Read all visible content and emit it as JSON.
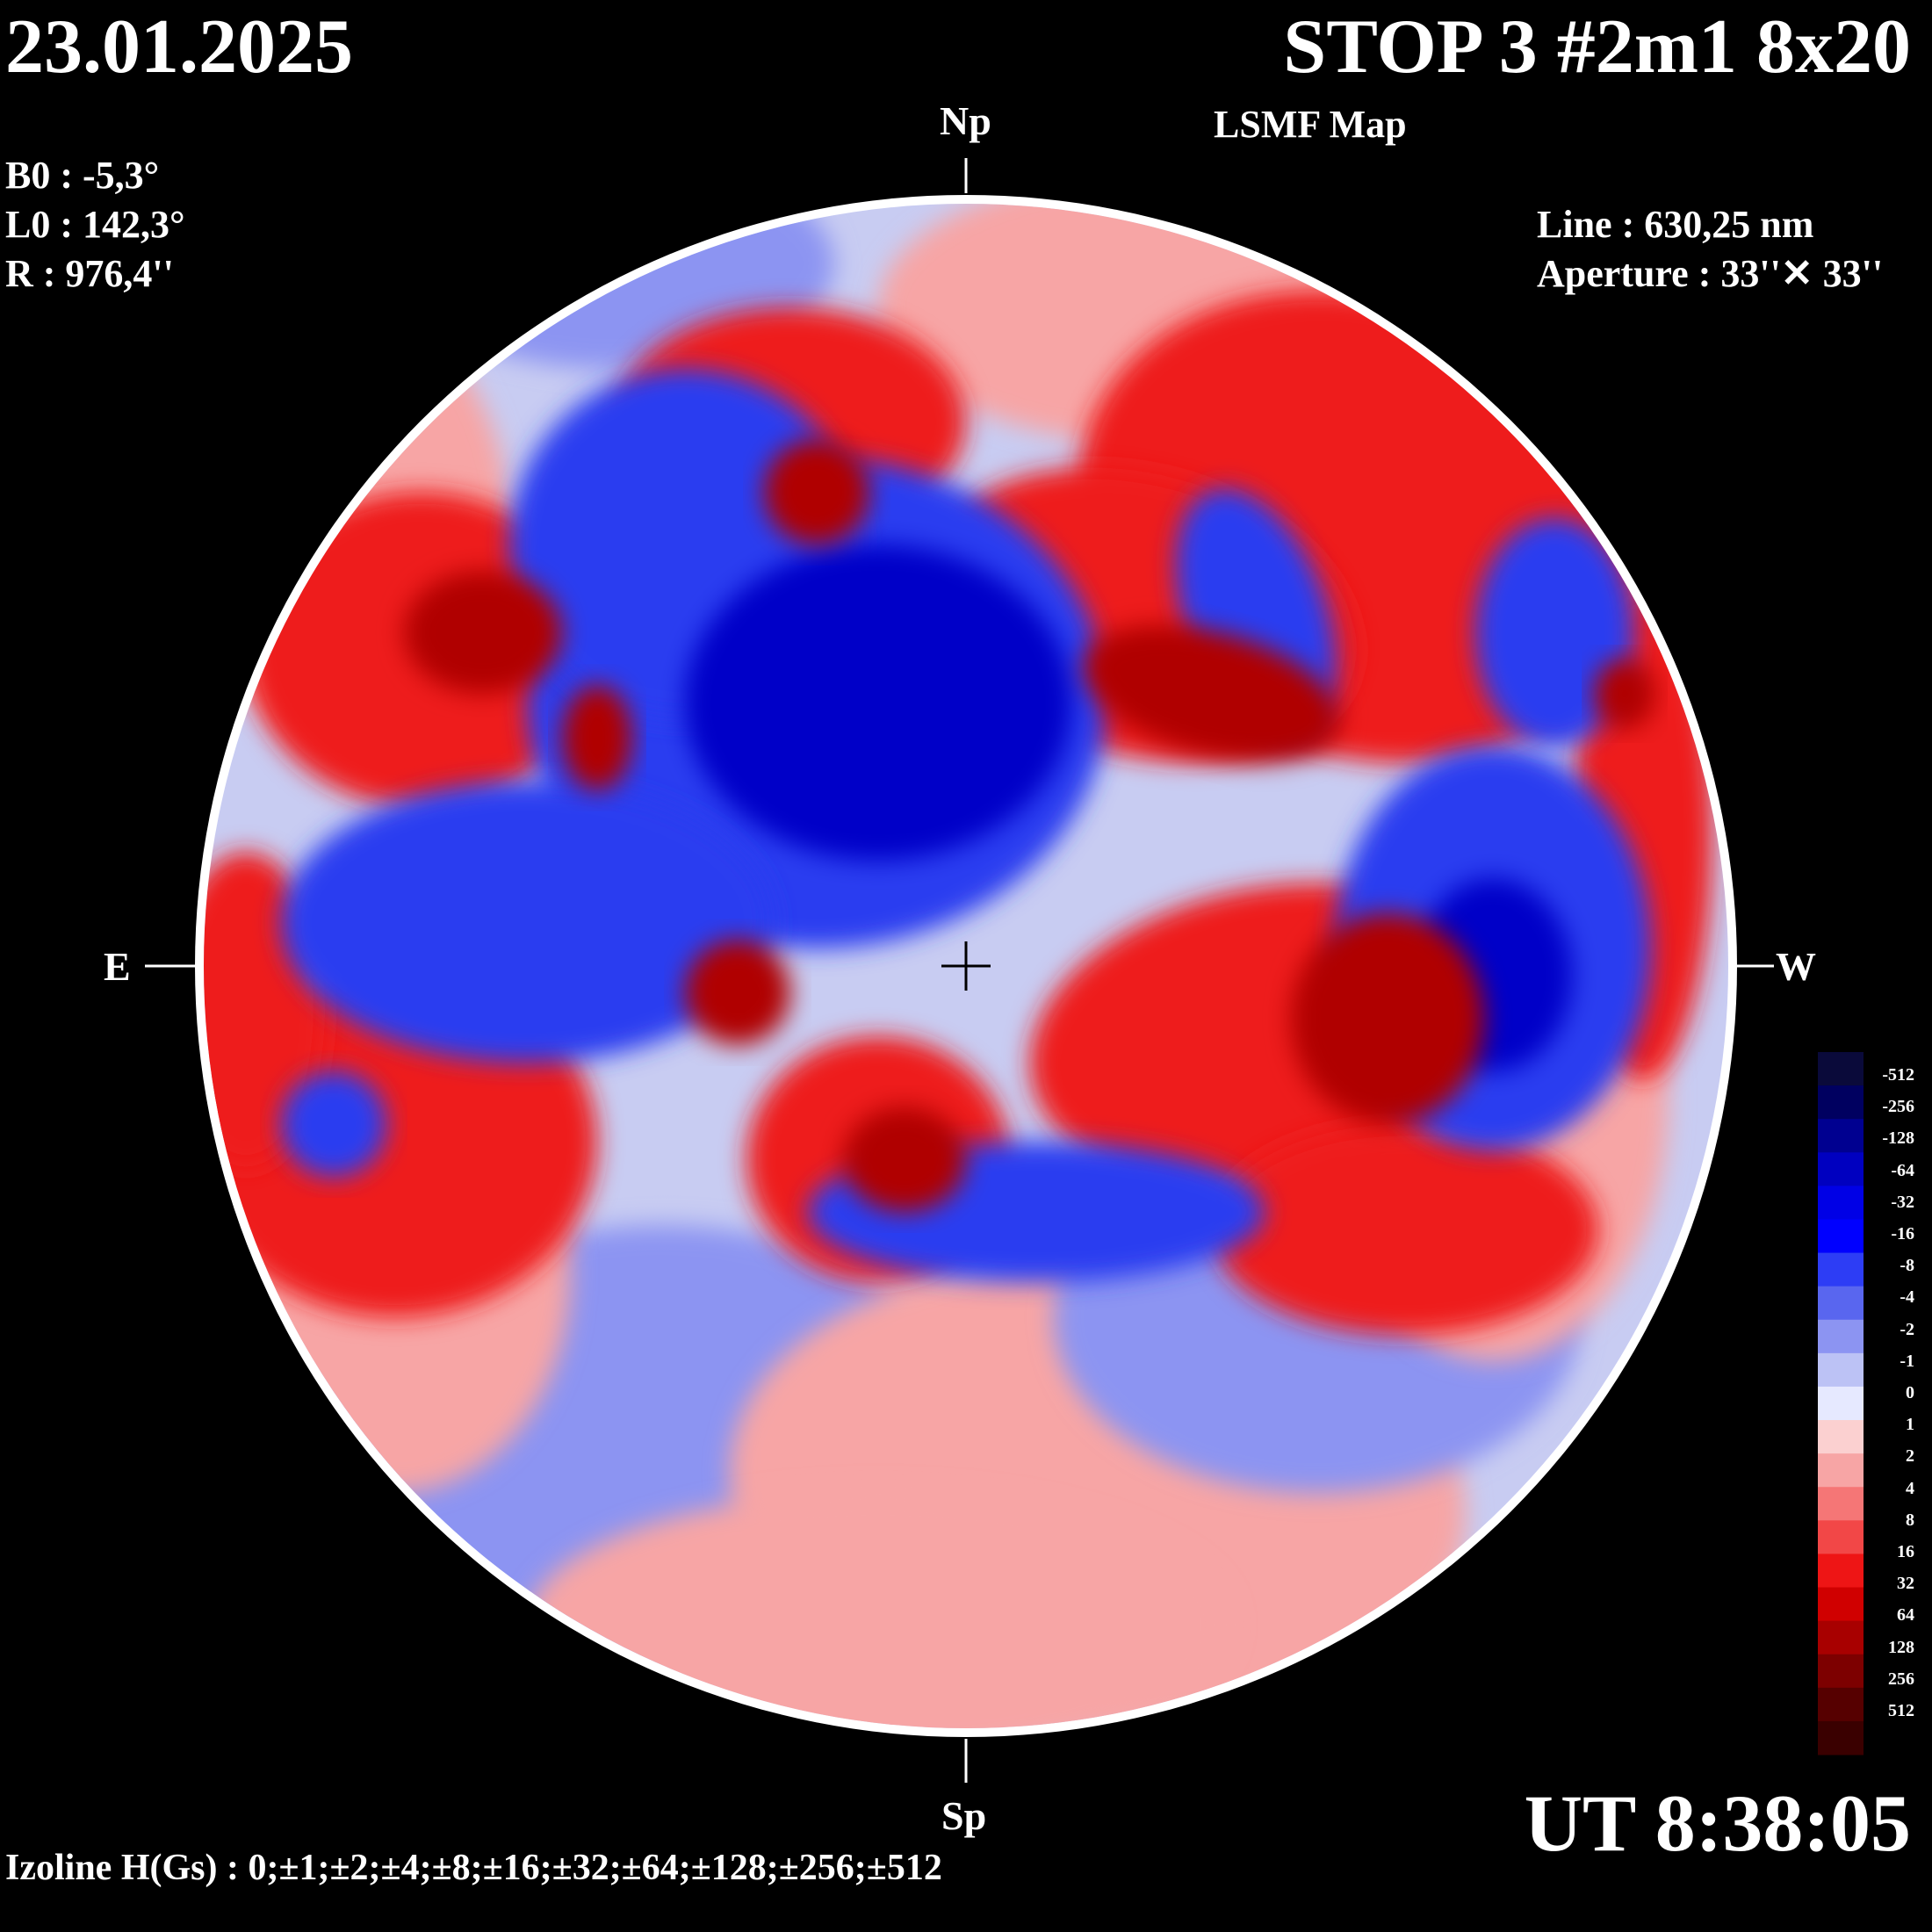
{
  "header": {
    "date": "23.01.2025",
    "title": "STOP 3 #2m1 8x20",
    "subtitle": "LSMF  Map"
  },
  "parameters": {
    "b0": "B0 : -5,3°",
    "l0": "L0 : 142,3°",
    "r": "R  : 976,4''"
  },
  "instrument": {
    "line": "Line :  630,25 nm",
    "aperture": "Aperture : 33''✕ 33''"
  },
  "directions": {
    "north": "Np",
    "south": "Sp",
    "east": "E",
    "west": "W"
  },
  "time": "UT 8:38:05",
  "isolines": "Izoline H(Gs) : 0;±1;±2;±4;±8;±16;±32;±64;±128;±256;±512",
  "colorbar": {
    "labels": [
      "-512",
      "-256",
      "-128",
      "-64",
      "-32",
      "-16",
      "-8",
      "-4",
      "-2",
      "-1",
      "0",
      "1",
      "2",
      "4",
      "8",
      "16",
      "32",
      "64",
      "128",
      "256",
      "512"
    ],
    "colors": [
      "#0a0a3a",
      "#000060",
      "#000090",
      "#0000c0",
      "#0000e6",
      "#0000ff",
      "#2d3df5",
      "#5966ef",
      "#8c94f2",
      "#bcc2f5",
      "#e6e9ff",
      "#fbd0d0",
      "#f7a5a5",
      "#f57676",
      "#f24747",
      "#ee1515",
      "#d00000",
      "#a80000",
      "#7d0000",
      "#560000",
      "#3a0000"
    ]
  },
  "map": {
    "colors": {
      "strong_neg": "#0000c8",
      "mid_neg": "#2a3cf0",
      "weak_neg": "#8c94f2",
      "strong_pos": "#b00000",
      "mid_pos": "#ee1a1a",
      "weak_pos": "#f7a5a5",
      "neutral": "#f2e6e6"
    }
  }
}
